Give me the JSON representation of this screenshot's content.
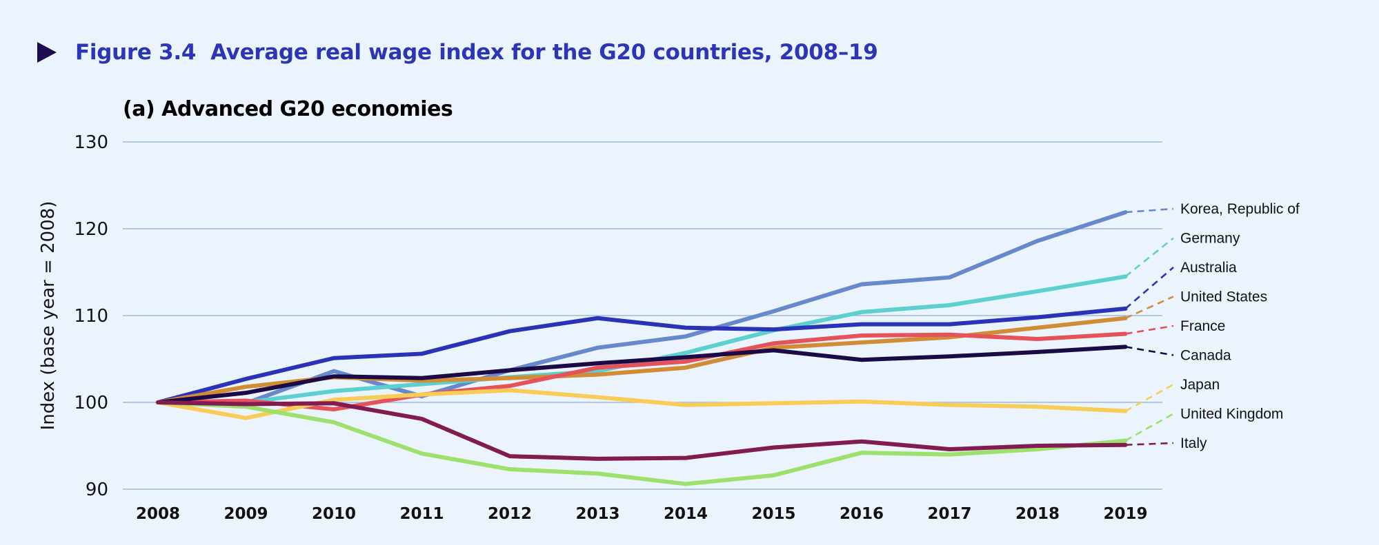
{
  "figure": {
    "marker_icon": "triangle-right-icon",
    "title": "Figure 3.4  Average real wage index for the G20 countries, 2008–19",
    "subtitle": "(a) Advanced G20 economies"
  },
  "colors": {
    "background": "#ebf4fc",
    "title": "#2b35b5",
    "marker": "#1e0a4e",
    "grid": "#9fb9d9"
  },
  "chart_data": {
    "type": "line",
    "title": "(a) Advanced G20 economies",
    "xlabel": "",
    "ylabel": "Index (base year = 2008)",
    "ylim": [
      90,
      130
    ],
    "yticks": [
      90,
      100,
      110,
      120,
      130
    ],
    "grid": true,
    "legend": "right (direct labels with dashed leaders)",
    "x": [
      "2008",
      "2009",
      "2010",
      "2011",
      "2012",
      "2013",
      "2014",
      "2015",
      "2016",
      "2017",
      "2018",
      "2019"
    ],
    "series": [
      {
        "name": "Korea, Republic of",
        "color": "#6888cc",
        "values": [
          100,
          99.9,
          103.6,
          100.7,
          103.7,
          106.3,
          107.6,
          110.5,
          113.6,
          114.4,
          118.6,
          121.9
        ]
      },
      {
        "name": "Germany",
        "color": "#5ccfcf",
        "values": [
          100,
          100.0,
          101.3,
          102.1,
          102.9,
          103.6,
          105.7,
          108.3,
          110.4,
          111.2,
          112.8,
          114.5
        ]
      },
      {
        "name": "Australia",
        "color": "#2a33b8",
        "values": [
          100,
          102.7,
          105.1,
          105.6,
          108.2,
          109.7,
          108.6,
          108.4,
          109.0,
          109.0,
          109.8,
          110.8
        ]
      },
      {
        "name": "United States",
        "color": "#d18c35",
        "values": [
          100,
          101.8,
          102.9,
          102.5,
          102.8,
          103.2,
          104.0,
          106.3,
          106.9,
          107.5,
          108.6,
          109.7
        ]
      },
      {
        "name": "France",
        "color": "#e5525a",
        "values": [
          100,
          100.2,
          99.2,
          100.9,
          101.9,
          104.0,
          104.7,
          106.8,
          107.7,
          107.8,
          107.3,
          107.9
        ]
      },
      {
        "name": "Canada",
        "color": "#1c0a47",
        "values": [
          100,
          101.1,
          103.0,
          102.8,
          103.7,
          104.5,
          105.2,
          106.0,
          104.9,
          105.3,
          105.8,
          106.4
        ]
      },
      {
        "name": "Japan",
        "color": "#f7cd58",
        "values": [
          100,
          98.2,
          100.3,
          100.9,
          101.4,
          100.6,
          99.7,
          99.9,
          100.1,
          99.7,
          99.5,
          99.0
        ]
      },
      {
        "name": "United Kingdom",
        "color": "#9de06b",
        "values": [
          100,
          99.5,
          97.7,
          94.1,
          92.3,
          91.8,
          90.6,
          91.6,
          94.2,
          94.0,
          94.6,
          95.6
        ]
      },
      {
        "name": "Italy",
        "color": "#801c52",
        "values": [
          100,
          99.8,
          99.9,
          98.1,
          93.8,
          93.5,
          93.6,
          94.8,
          95.5,
          94.6,
          95.0,
          95.1
        ]
      }
    ]
  }
}
